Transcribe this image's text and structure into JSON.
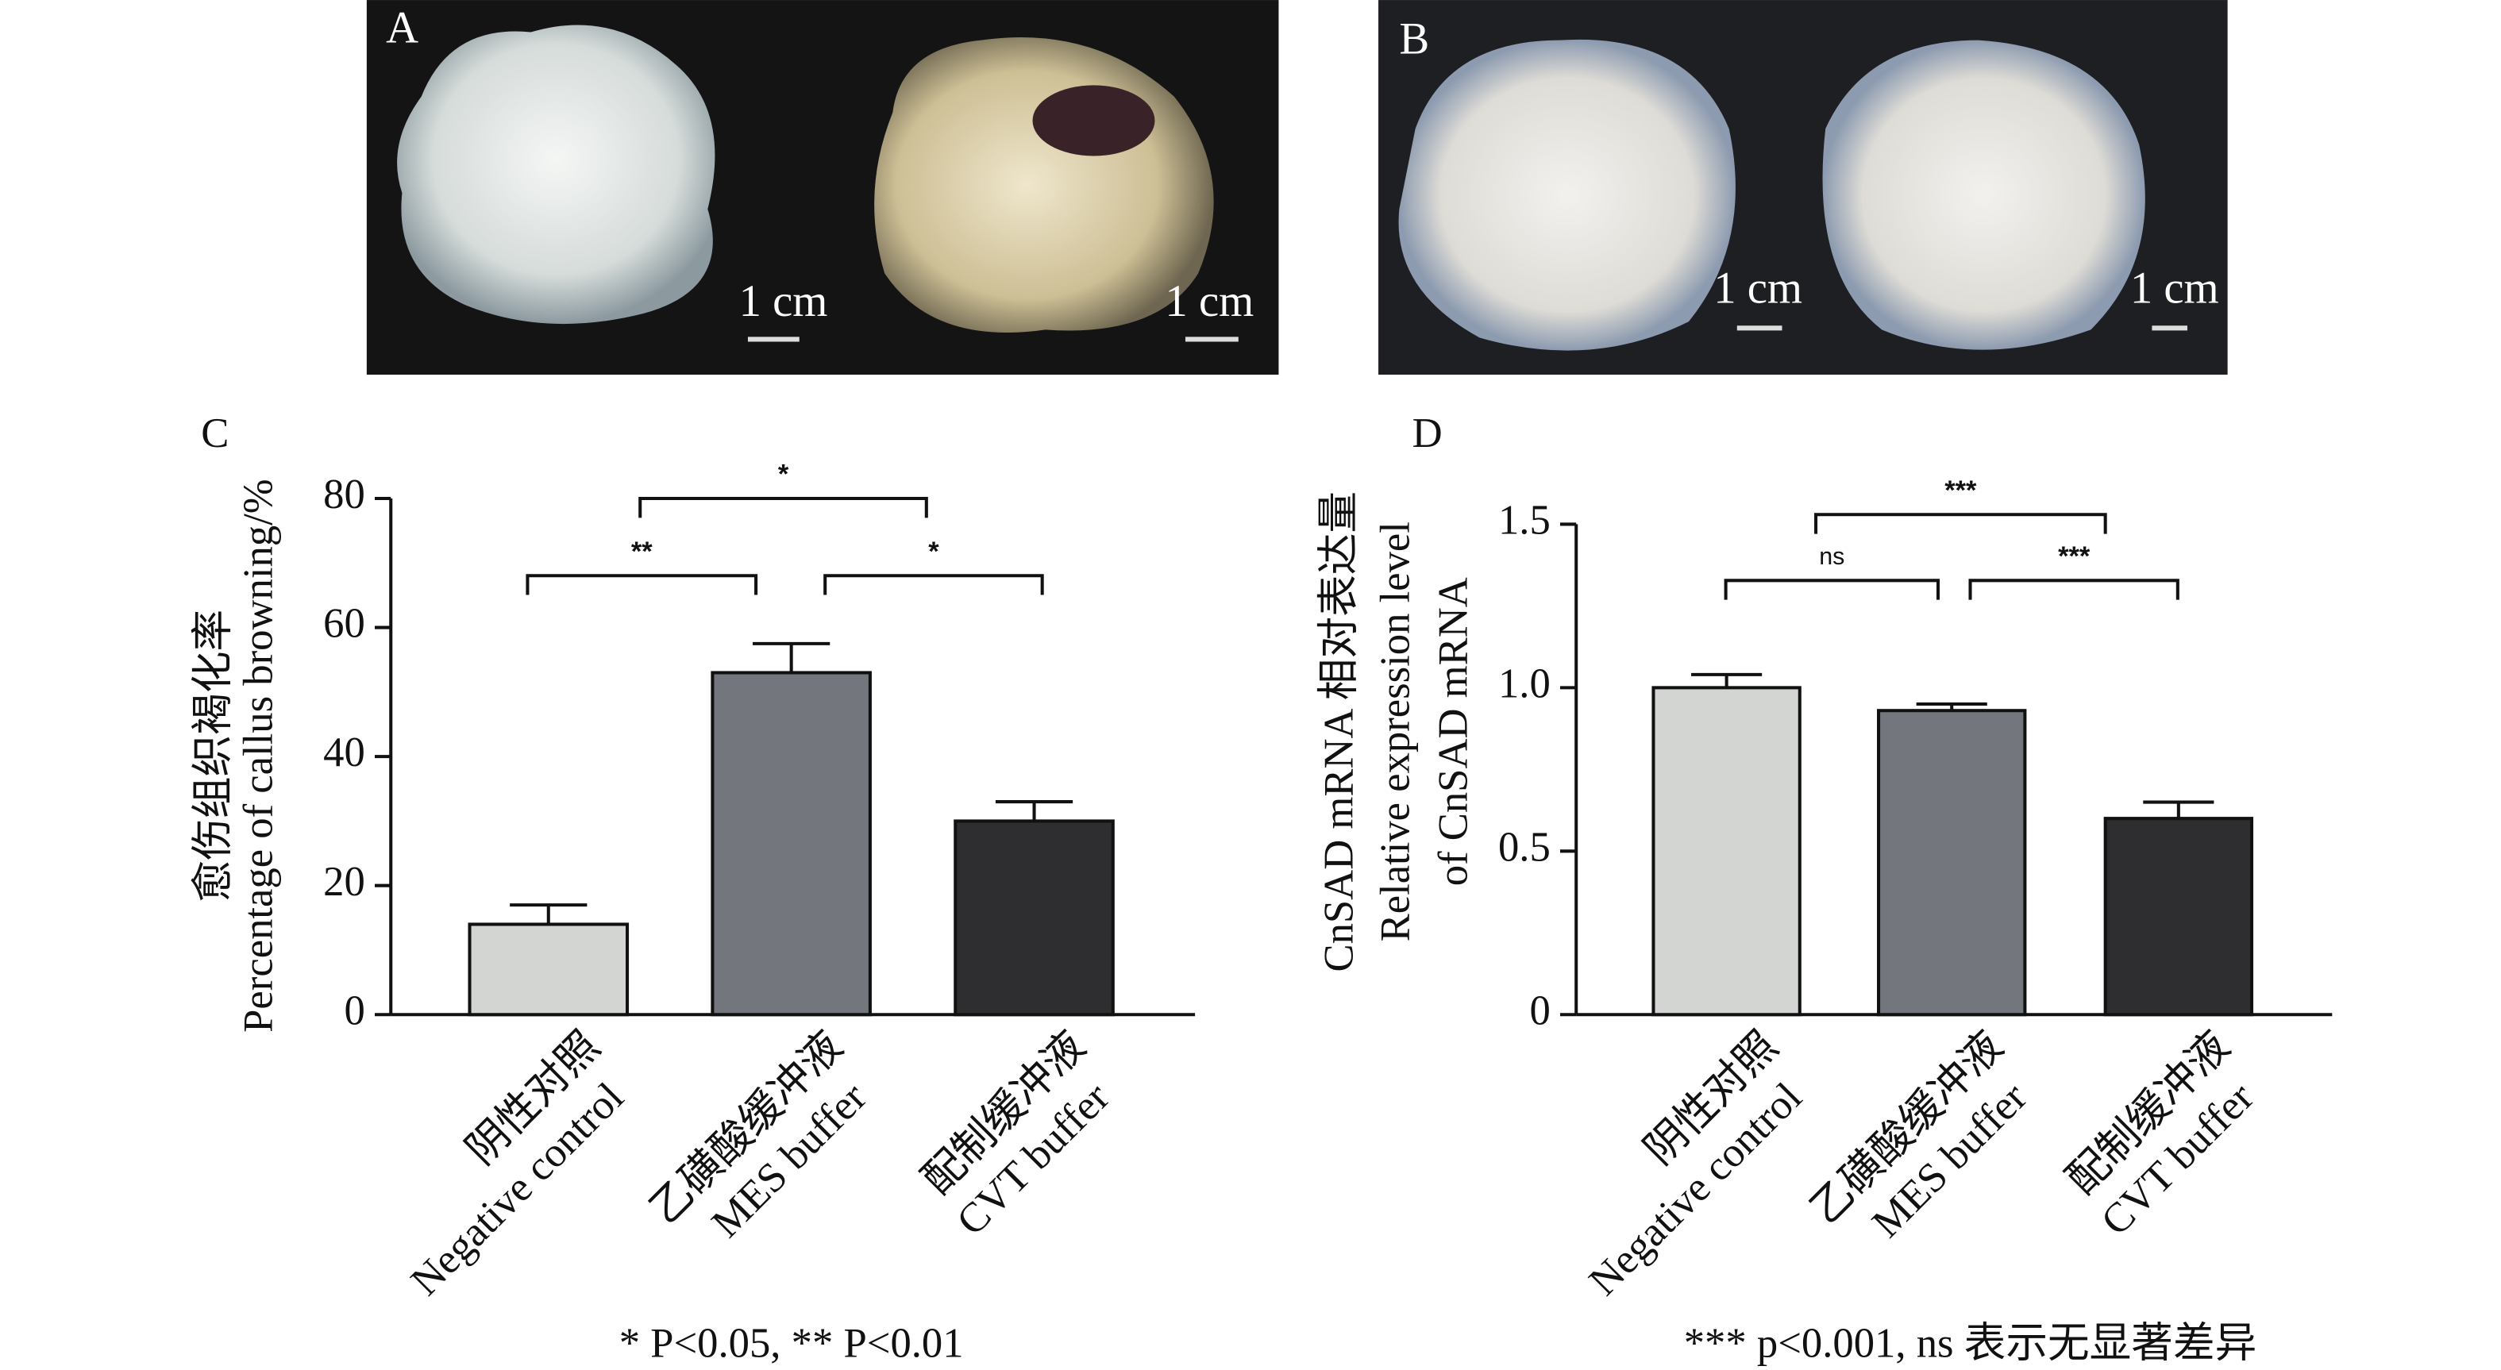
{
  "photos": [
    {
      "label": "A",
      "scale_labels": [
        "1 cm",
        "1 cm"
      ]
    },
    {
      "label": "B",
      "scale_labels": [
        "1 cm",
        "1 cm"
      ]
    }
  ],
  "chart_data": [
    {
      "type": "bar",
      "panel_label": "C",
      "y_label": [
        "愈伤组织褐化率",
        "Percentage of callus browning/%"
      ],
      "categories": [
        [
          "阴性对照",
          "Negative control"
        ],
        [
          "乙磺酸缓冲液",
          "MES buffer"
        ],
        [
          "配制缓冲液",
          "CVT buffer"
        ]
      ],
      "values": [
        14,
        53,
        30
      ],
      "errors": [
        3,
        4.5,
        3
      ],
      "colors": [
        "#d3d5d3",
        "#74767e",
        "#2e2e30"
      ],
      "ylim": [
        0,
        80
      ],
      "yticks": [
        0,
        20,
        40,
        60,
        80
      ],
      "significance": [
        "**",
        "*",
        "*"
      ],
      "footnote": "* P<0.05, ** P<0.01"
    },
    {
      "type": "bar",
      "panel_label": "D",
      "y_label": [
        "CnSAD mRNA 相对表达量",
        "Relative expression level",
        "of CnSAD mRNA"
      ],
      "categories": [
        [
          "阴性对照",
          "Negative control"
        ],
        [
          "乙磺酸缓冲液",
          "MES buffer"
        ],
        [
          "配制缓冲液",
          "CVT buffer"
        ]
      ],
      "values": [
        1.0,
        0.93,
        0.6
      ],
      "errors": [
        0.04,
        0.02,
        0.05
      ],
      "colors": [
        "#d3d5d3",
        "#74767e",
        "#2e2e30"
      ],
      "ylim": [
        0,
        1.5
      ],
      "yticks": [
        0,
        0.5,
        {
          "value": 1,
          "label": "1.0"
        },
        1.5
      ],
      "significance": [
        "ns",
        "***",
        "***"
      ],
      "footnote": "*** p<0.001, ns 表示无显著差异"
    }
  ]
}
